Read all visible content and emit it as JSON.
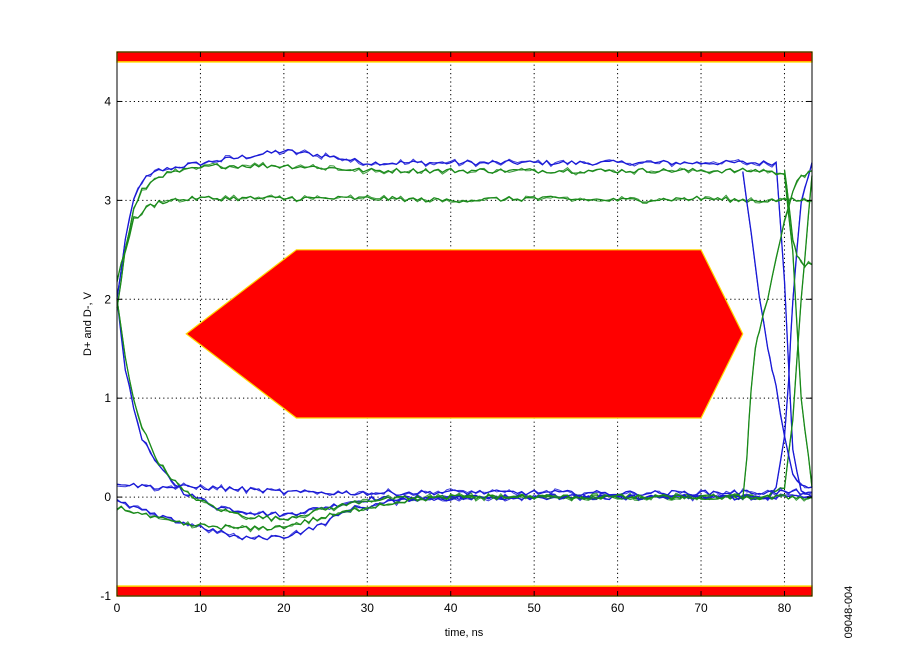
{
  "chart_data": {
    "type": "line",
    "title": "",
    "xlabel": "time, ns",
    "ylabel": "D+ and D-, V",
    "xlim": [
      0,
      83.3
    ],
    "ylim": [
      -1,
      4.5
    ],
    "xticks": [
      0,
      10,
      20,
      30,
      40,
      50,
      60,
      70,
      80
    ],
    "yticks": [
      -1,
      0,
      1,
      2,
      3,
      4
    ],
    "grid": true,
    "figure_id": "09048-004",
    "colors": {
      "mask_fill": "#ff0000",
      "mask_edge": "#ffd700",
      "dplus_traces": "#1a1ad6",
      "dminus_traces": "#1a8a1a",
      "grid": "#000000"
    },
    "mask": {
      "upper_limit_band": [
        4.4,
        4.5
      ],
      "lower_limit_band": [
        -1.0,
        -0.9
      ],
      "hexagon": [
        [
          8.3,
          1.65
        ],
        [
          21.5,
          2.5
        ],
        [
          70.0,
          2.5
        ],
        [
          75.0,
          1.65
        ],
        [
          70.0,
          0.8
        ],
        [
          21.5,
          0.8
        ]
      ]
    },
    "series": [
      {
        "color": "#1a1ad6",
        "x": [
          0,
          1,
          2,
          3,
          5,
          8,
          12,
          16,
          20,
          25,
          30,
          40,
          50,
          60,
          70,
          76,
          79,
          80,
          81,
          82,
          83.3
        ],
        "y": [
          2.0,
          2.6,
          3.0,
          3.2,
          3.3,
          3.35,
          3.4,
          3.45,
          3.5,
          3.45,
          3.38,
          3.38,
          3.38,
          3.38,
          3.38,
          3.38,
          3.38,
          2.2,
          0.5,
          0.05,
          0.0
        ]
      },
      {
        "color": "#1a1ad6",
        "x": [
          0,
          1,
          2,
          3,
          5,
          8,
          12,
          16,
          20,
          25,
          30,
          40,
          50,
          60,
          70,
          78,
          79,
          80,
          80.5,
          81,
          82,
          83.3
        ],
        "y": [
          2.0,
          1.3,
          0.9,
          0.6,
          0.3,
          0.05,
          -0.1,
          -0.15,
          -0.18,
          -0.1,
          -0.02,
          0.0,
          0.0,
          0.0,
          0.0,
          0.0,
          0.1,
          0.6,
          1.2,
          2.0,
          3.0,
          3.38
        ]
      },
      {
        "color": "#1a8a1a",
        "x": [
          0,
          1,
          2,
          3,
          5,
          8,
          12,
          16,
          20,
          25,
          30,
          40,
          50,
          60,
          70,
          78,
          80,
          81,
          82,
          83.3
        ],
        "y": [
          1.9,
          2.5,
          2.9,
          3.1,
          3.25,
          3.3,
          3.35,
          3.35,
          3.35,
          3.33,
          3.3,
          3.3,
          3.3,
          3.3,
          3.3,
          3.3,
          3.25,
          2.5,
          1.0,
          0.1
        ]
      },
      {
        "color": "#1a8a1a",
        "x": [
          0,
          1,
          2,
          3,
          5,
          8,
          12,
          16,
          20,
          25,
          30,
          40,
          50,
          60,
          70,
          78,
          80,
          81,
          82,
          83.3
        ],
        "y": [
          2.0,
          1.4,
          1.0,
          0.7,
          0.35,
          0.05,
          -0.12,
          -0.2,
          -0.22,
          -0.12,
          -0.03,
          0.0,
          0.0,
          0.0,
          0.0,
          0.0,
          0.1,
          0.8,
          2.0,
          3.25
        ]
      },
      {
        "color": "#1a8a1a",
        "x": [
          0,
          2,
          4,
          6,
          10,
          20,
          30,
          40,
          50,
          60,
          70,
          75,
          80,
          83.3
        ],
        "y": [
          2.2,
          2.8,
          2.95,
          3.0,
          3.02,
          3.02,
          3.02,
          3.0,
          3.02,
          3.0,
          3.02,
          3.0,
          3.0,
          3.0
        ]
      },
      {
        "color": "#1a1ad6",
        "x": [
          0,
          2,
          5,
          10,
          15,
          20,
          24,
          28,
          35,
          50,
          70,
          80,
          83.3
        ],
        "y": [
          -0.05,
          -0.1,
          -0.2,
          -0.3,
          -0.42,
          -0.4,
          -0.3,
          -0.12,
          -0.02,
          0.0,
          0.0,
          0.0,
          0.0
        ]
      },
      {
        "color": "#1a1ad6",
        "x": [
          0,
          2,
          5,
          10,
          15,
          20,
          30,
          40,
          60,
          80,
          83.3
        ],
        "y": [
          0.15,
          0.12,
          0.1,
          0.1,
          0.08,
          0.05,
          0.04,
          0.05,
          0.04,
          0.05,
          0.05
        ]
      },
      {
        "color": "#1a1ad6",
        "x": [
          75,
          76,
          77,
          78,
          78.5,
          79,
          80,
          81,
          82,
          83.3
        ],
        "y": [
          3.3,
          2.7,
          2.0,
          1.5,
          1.3,
          1.1,
          0.6,
          0.25,
          0.12,
          0.1
        ]
      },
      {
        "color": "#1a8a1a",
        "x": [
          75,
          75.5,
          76,
          76.5,
          77,
          78,
          79,
          80,
          81,
          82,
          83.3
        ],
        "y": [
          0.0,
          0.4,
          1.1,
          1.5,
          1.7,
          2.0,
          2.4,
          2.8,
          3.1,
          3.25,
          3.3
        ]
      },
      {
        "color": "#1a8a1a",
        "x": [
          0,
          2,
          4,
          8,
          12,
          16,
          20,
          25,
          30,
          35,
          40,
          60,
          80,
          83.3
        ],
        "y": [
          -0.1,
          -0.15,
          -0.2,
          -0.28,
          -0.3,
          -0.32,
          -0.3,
          -0.2,
          -0.1,
          -0.03,
          0.0,
          0.0,
          0.0,
          0.0
        ]
      },
      {
        "color": "#1a8a1a",
        "x": [
          80,
          80.5,
          81,
          81.5,
          82,
          83.3
        ],
        "y": [
          3.3,
          3.0,
          2.6,
          2.45,
          2.35,
          2.35
        ]
      }
    ]
  }
}
